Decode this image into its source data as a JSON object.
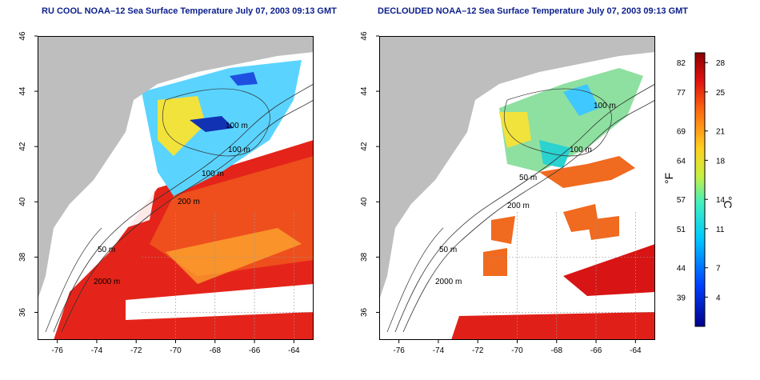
{
  "panels": [
    {
      "title": "RU COOL NOAA–12 Sea Surface Temperature July 07, 2003 09:13 GMT",
      "contour_labels": [
        "100 m",
        "100 m",
        "100 m",
        "200 m",
        "50 m",
        "2000 m"
      ]
    },
    {
      "title": "DECLOUDED NOAA–12 Sea Surface Temperature July 07, 2003 09:13 GMT",
      "contour_labels": [
        "100 m",
        "100 m",
        "50 m",
        "200 m",
        "50 m",
        "2000 m"
      ]
    }
  ],
  "axes": {
    "x_ticks": [
      "-76",
      "-74",
      "-72",
      "-70",
      "-68",
      "-66",
      "-64"
    ],
    "y_ticks": [
      "46",
      "44",
      "42",
      "40",
      "38",
      "36"
    ],
    "x_range": [
      -77,
      -63
    ],
    "y_range": [
      35,
      46
    ]
  },
  "colorbar": {
    "unit_f": "°F",
    "unit_c": "°C",
    "f_ticks": [
      "82",
      "77",
      "69",
      "64",
      "57",
      "51",
      "44",
      "39"
    ],
    "c_ticks": [
      "28",
      "25",
      "21",
      "18",
      "14",
      "11",
      "7",
      "4"
    ],
    "c_values": [
      28,
      25,
      21,
      18,
      14,
      11,
      7,
      4
    ],
    "c_range": [
      1,
      29
    ]
  },
  "colors": {
    "land": "#bebebe",
    "ocean_nodata": "#ffffff",
    "title": "#0a1e8c",
    "contour": "#333333",
    "grid": "#999999"
  }
}
